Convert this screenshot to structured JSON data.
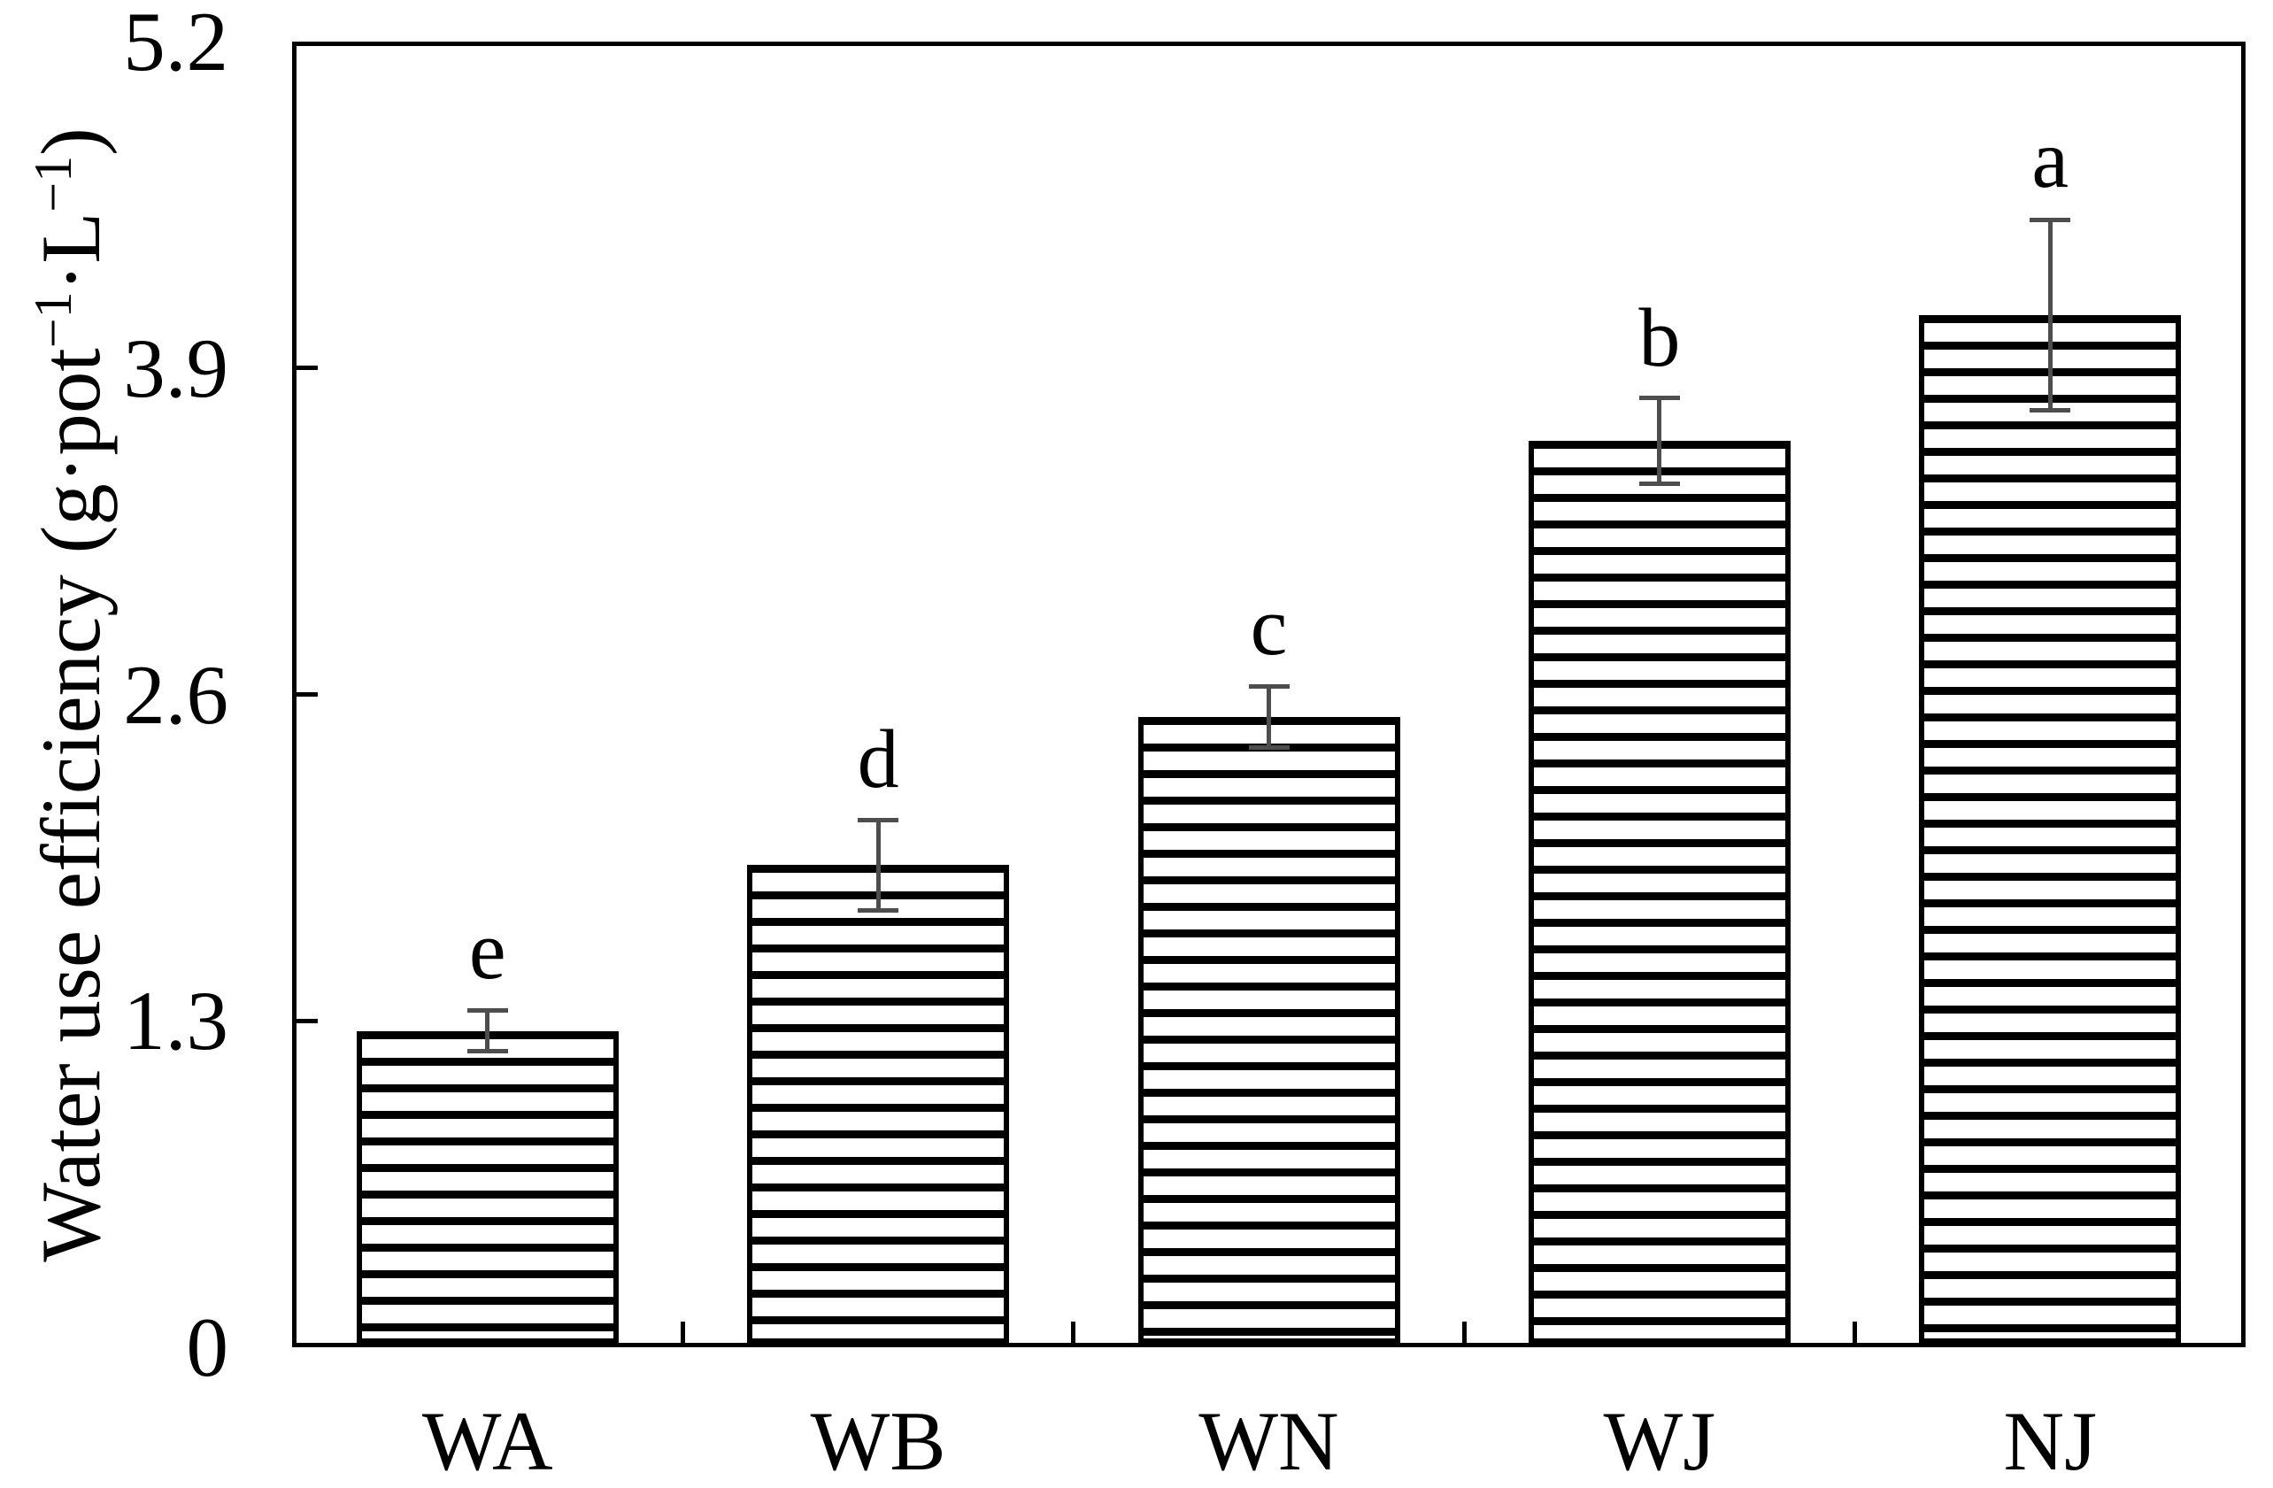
{
  "page": {
    "background": "#ffffff"
  },
  "chart_data": {
    "type": "bar",
    "title": "",
    "categories": [
      "WA",
      "WB",
      "WN",
      "WJ",
      "NJ"
    ],
    "values": [
      1.26,
      1.92,
      2.51,
      3.61,
      4.11
    ],
    "errors": [
      0.08,
      0.18,
      0.12,
      0.17,
      0.38
    ],
    "significance_letters": [
      "e",
      "d",
      "c",
      "b",
      "a"
    ],
    "ylabel": "Water use efficiency (g·pot−1·L−1)",
    "ylabel_segments": [
      {
        "t": "Water use efficiency (g·pot",
        "sup": false
      },
      {
        "t": "−1",
        "sup": true
      },
      {
        "t": "·L",
        "sup": false
      },
      {
        "t": "−1",
        "sup": true
      },
      {
        "t": ")",
        "sup": false
      }
    ],
    "xlabel": "",
    "ylim": [
      0,
      5.2
    ],
    "yticks": [
      0,
      1.3,
      2.6,
      3.9,
      5.2
    ],
    "ytick_labels": [
      "0",
      "1.3",
      "2.6",
      "3.9",
      "5.2"
    ],
    "grid": false,
    "legend": "none",
    "bar_fill_pattern": "horizontal-stripes",
    "bar_fill_color": "#000000",
    "bar_edge_color": "#000000",
    "error_bar_color": "#4d4d4d"
  }
}
